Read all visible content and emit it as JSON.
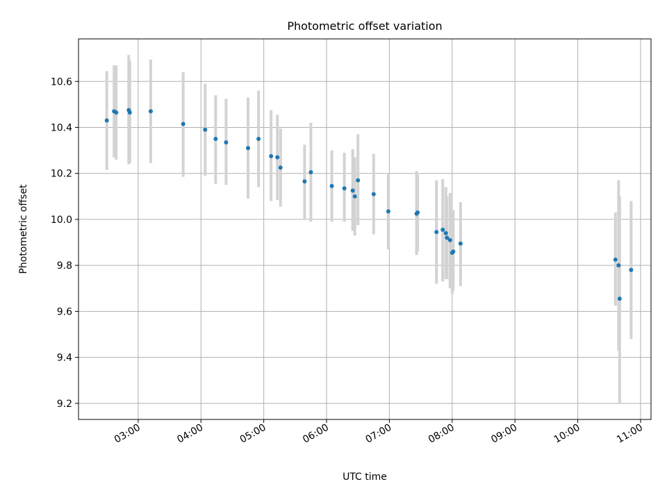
{
  "chart_data": {
    "type": "scatter",
    "title": "Photometric offset variation",
    "xlabel": "UTC time",
    "ylabel": "Photometric offset",
    "x_is_time": true,
    "xlim": [
      "02:03",
      "11:10"
    ],
    "ylim": [
      9.13,
      10.785
    ],
    "x_ticks": [
      "03:00",
      "04:00",
      "05:00",
      "06:00",
      "07:00",
      "08:00",
      "09:00",
      "10:00",
      "11:00"
    ],
    "y_ticks": [
      9.2,
      9.4,
      9.6,
      9.8,
      10.0,
      10.2,
      10.4,
      10.6
    ],
    "y_tick_labels": [
      "9.2",
      "9.4",
      "9.6",
      "9.8",
      "10.0",
      "10.2",
      "10.4",
      "10.6"
    ],
    "grid": true,
    "marker_color": "#1f77b4",
    "errorbar_color": "#d3d3d3",
    "points": [
      {
        "x": "02:30",
        "y": 10.43,
        "ylow": 10.215,
        "yhigh": 10.645
      },
      {
        "x": "02:37",
        "y": 10.47,
        "ylow": 10.27,
        "yhigh": 10.67
      },
      {
        "x": "02:39",
        "y": 10.465,
        "ylow": 10.26,
        "yhigh": 10.67
      },
      {
        "x": "02:51",
        "y": 10.475,
        "ylow": 10.24,
        "yhigh": 10.715
      },
      {
        "x": "02:52",
        "y": 10.465,
        "ylow": 10.245,
        "yhigh": 10.69
      },
      {
        "x": "03:12",
        "y": 10.47,
        "ylow": 10.245,
        "yhigh": 10.695
      },
      {
        "x": "03:43",
        "y": 10.415,
        "ylow": 10.185,
        "yhigh": 10.64
      },
      {
        "x": "04:04",
        "y": 10.39,
        "ylow": 10.19,
        "yhigh": 10.59
      },
      {
        "x": "04:14",
        "y": 10.35,
        "ylow": 10.155,
        "yhigh": 10.54
      },
      {
        "x": "04:24",
        "y": 10.335,
        "ylow": 10.15,
        "yhigh": 10.525
      },
      {
        "x": "04:45",
        "y": 10.31,
        "ylow": 10.09,
        "yhigh": 10.53
      },
      {
        "x": "04:55",
        "y": 10.35,
        "ylow": 10.14,
        "yhigh": 10.56
      },
      {
        "x": "05:07",
        "y": 10.275,
        "ylow": 10.08,
        "yhigh": 10.475
      },
      {
        "x": "05:13",
        "y": 10.27,
        "ylow": 10.085,
        "yhigh": 10.455
      },
      {
        "x": "05:16",
        "y": 10.225,
        "ylow": 10.055,
        "yhigh": 10.395
      },
      {
        "x": "05:39",
        "y": 10.165,
        "ylow": 10.0,
        "yhigh": 10.325
      },
      {
        "x": "05:45",
        "y": 10.205,
        "ylow": 9.99,
        "yhigh": 10.42
      },
      {
        "x": "06:05",
        "y": 10.145,
        "ylow": 9.99,
        "yhigh": 10.3
      },
      {
        "x": "06:17",
        "y": 10.135,
        "ylow": 9.99,
        "yhigh": 10.29
      },
      {
        "x": "06:25",
        "y": 10.125,
        "ylow": 9.95,
        "yhigh": 10.305
      },
      {
        "x": "06:27",
        "y": 10.1,
        "ylow": 9.93,
        "yhigh": 10.27
      },
      {
        "x": "06:30",
        "y": 10.17,
        "ylow": 9.975,
        "yhigh": 10.37
      },
      {
        "x": "06:45",
        "y": 10.11,
        "ylow": 9.935,
        "yhigh": 10.285
      },
      {
        "x": "06:59",
        "y": 10.035,
        "ylow": 9.87,
        "yhigh": 10.2
      },
      {
        "x": "07:26",
        "y": 10.025,
        "ylow": 9.845,
        "yhigh": 10.21
      },
      {
        "x": "07:27",
        "y": 10.03,
        "ylow": 9.86,
        "yhigh": 10.195
      },
      {
        "x": "07:45",
        "y": 9.945,
        "ylow": 9.72,
        "yhigh": 10.17
      },
      {
        "x": "07:51",
        "y": 9.955,
        "ylow": 9.73,
        "yhigh": 10.175
      },
      {
        "x": "07:54",
        "y": 9.94,
        "ylow": 9.74,
        "yhigh": 10.14
      },
      {
        "x": "07:55",
        "y": 9.92,
        "ylow": 9.74,
        "yhigh": 10.1
      },
      {
        "x": "07:58",
        "y": 9.91,
        "ylow": 9.7,
        "yhigh": 10.115
      },
      {
        "x": "08:00",
        "y": 9.855,
        "ylow": 9.675,
        "yhigh": 10.035
      },
      {
        "x": "08:01",
        "y": 9.86,
        "ylow": 9.69,
        "yhigh": 10.04
      },
      {
        "x": "08:08",
        "y": 9.895,
        "ylow": 9.71,
        "yhigh": 10.075
      },
      {
        "x": "10:36",
        "y": 9.825,
        "ylow": 9.625,
        "yhigh": 10.03
      },
      {
        "x": "10:39",
        "y": 9.8,
        "ylow": 9.43,
        "yhigh": 10.17
      },
      {
        "x": "10:40",
        "y": 9.655,
        "ylow": 9.2,
        "yhigh": 10.1
      },
      {
        "x": "10:51",
        "y": 9.78,
        "ylow": 9.48,
        "yhigh": 10.08
      }
    ]
  }
}
